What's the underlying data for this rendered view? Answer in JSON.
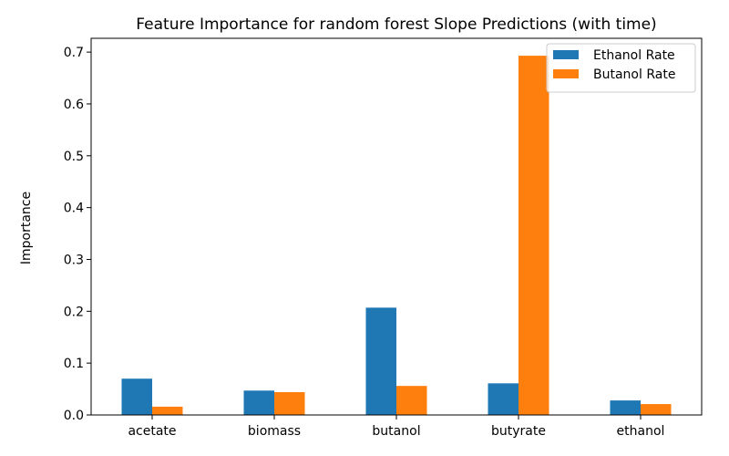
{
  "chart_data": {
    "type": "bar",
    "title": "Feature Importance for random forest Slope Predictions (with time)",
    "xlabel": "",
    "ylabel": "Importance",
    "categories": [
      "acetate",
      "biomass",
      "butanol",
      "butyrate",
      "ethanol"
    ],
    "series": [
      {
        "name": "Ethanol Rate",
        "color": "#1f77b4",
        "values": [
          0.07,
          0.047,
          0.207,
          0.061,
          0.028
        ]
      },
      {
        "name": "Butanol Rate",
        "color": "#ff7f0e",
        "values": [
          0.016,
          0.044,
          0.056,
          0.693,
          0.021
        ]
      }
    ],
    "ylim": [
      0,
      0.7266
    ],
    "yticks": [
      0.0,
      0.1,
      0.2,
      0.3,
      0.4,
      0.5,
      0.6,
      0.7
    ],
    "ytick_labels": [
      "0.0",
      "0.1",
      "0.2",
      "0.3",
      "0.4",
      "0.5",
      "0.6",
      "0.7"
    ],
    "legend_position": "top-right",
    "grid": false
  }
}
